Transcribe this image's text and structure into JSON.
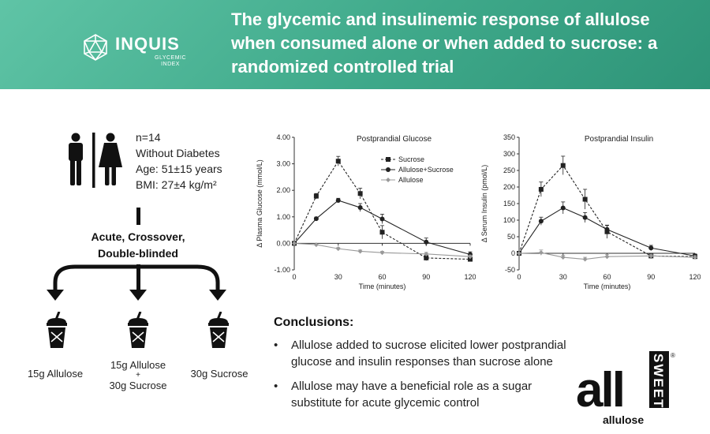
{
  "header": {
    "logo_name": "INQUIS",
    "logo_sub_1": "GLYCEMIC",
    "logo_sub_2": "INDEX",
    "title_lines": [
      "The glycemic and insulinemic response of allulose",
      "when consumed alone or when added to sucrose: a",
      "randomized controlled trial"
    ],
    "background_color": "#3fa98a"
  },
  "participants": {
    "icon": "man-woman-restroom-icon",
    "lines": [
      "n=14",
      "Without Diabetes",
      "Age: 51±15 years",
      "BMI: 27±4 kg/m²"
    ]
  },
  "design": {
    "line1": "Acute, Crossover,",
    "line2": "Double-blinded"
  },
  "arms": [
    {
      "icon": "drink-cup-icon",
      "label_lines": [
        "15g Allulose"
      ]
    },
    {
      "icon": "drink-cup-icon",
      "label_lines": [
        "15g Allulose",
        "+",
        "30g Sucrose"
      ]
    },
    {
      "icon": "drink-cup-icon",
      "label_lines": [
        "30g Sucrose"
      ]
    }
  ],
  "chart_data": [
    {
      "type": "line",
      "title": "Postprandial Glucose",
      "xlabel": "Time (minutes)",
      "ylabel": "Δ Plasma Glucose (mmol/L)",
      "x": [
        0,
        15,
        30,
        45,
        60,
        90,
        120
      ],
      "xticks": [
        0,
        30,
        60,
        90,
        120
      ],
      "ylim": [
        -1.0,
        4.0
      ],
      "yticks": [
        "-1.00",
        "0.00",
        "1.00",
        "2.00",
        "3.00",
        "4.00"
      ],
      "legend_position": "top-right",
      "series": [
        {
          "name": "Sucrose",
          "color": "#222222",
          "marker": "square",
          "dash": true,
          "values": [
            0,
            1.78,
            3.1,
            1.88,
            0.42,
            -0.55,
            -0.6
          ],
          "err": [
            0,
            0.1,
            0.18,
            0.2,
            0.25,
            0.1,
            0.08
          ]
        },
        {
          "name": "Allulose+Sucrose",
          "color": "#222222",
          "marker": "circle",
          "dash": false,
          "values": [
            0,
            0.93,
            1.62,
            1.35,
            0.92,
            0.05,
            -0.42
          ],
          "err": [
            0,
            0.06,
            0.08,
            0.15,
            0.18,
            0.15,
            0.1
          ]
        },
        {
          "name": "Allulose",
          "color": "#999999",
          "marker": "diamond",
          "dash": false,
          "values": [
            0,
            -0.05,
            -0.2,
            -0.3,
            -0.35,
            -0.4,
            -0.5
          ],
          "err": [
            0,
            0.03,
            0.04,
            0.05,
            0.05,
            0.06,
            0.06
          ]
        }
      ]
    },
    {
      "type": "line",
      "title": "Postprandial Insulin",
      "xlabel": "Time (minutes)",
      "ylabel": "Δ Serum Insulin (pmol/L)",
      "x": [
        0,
        15,
        30,
        45,
        60,
        90,
        120
      ],
      "xticks": [
        0,
        30,
        60,
        90,
        120
      ],
      "ylim": [
        -50,
        350
      ],
      "yticks": [
        "-50",
        "0",
        "50",
        "100",
        "150",
        "200",
        "250",
        "300",
        "350"
      ],
      "series": [
        {
          "name": "Sucrose",
          "color": "#222222",
          "marker": "square",
          "dash": true,
          "values": [
            0,
            193,
            265,
            163,
            65,
            -8,
            -10
          ],
          "err": [
            0,
            22,
            28,
            30,
            20,
            8,
            6
          ]
        },
        {
          "name": "Allulose+Sucrose",
          "color": "#222222",
          "marker": "circle",
          "dash": false,
          "values": [
            0,
            97,
            137,
            108,
            72,
            16,
            -8
          ],
          "err": [
            0,
            12,
            18,
            15,
            12,
            8,
            6
          ]
        },
        {
          "name": "Allulose",
          "color": "#999999",
          "marker": "diamond",
          "dash": false,
          "values": [
            0,
            2,
            -12,
            -18,
            -10,
            -8,
            -12
          ],
          "err": [
            0,
            8,
            6,
            6,
            6,
            5,
            5
          ]
        }
      ]
    }
  ],
  "conclusions": {
    "title": "Conclusions:",
    "bullets": [
      "Allulose added to sucrose elicited lower postprandial glucose and insulin responses than sucrose alone",
      "Allulose may have a beneficial role as a sugar substitute for acute glycemic control"
    ]
  },
  "brand": {
    "wordmark": "all",
    "vertical": "SWEET",
    "sub": "allulose",
    "registered": "®"
  }
}
